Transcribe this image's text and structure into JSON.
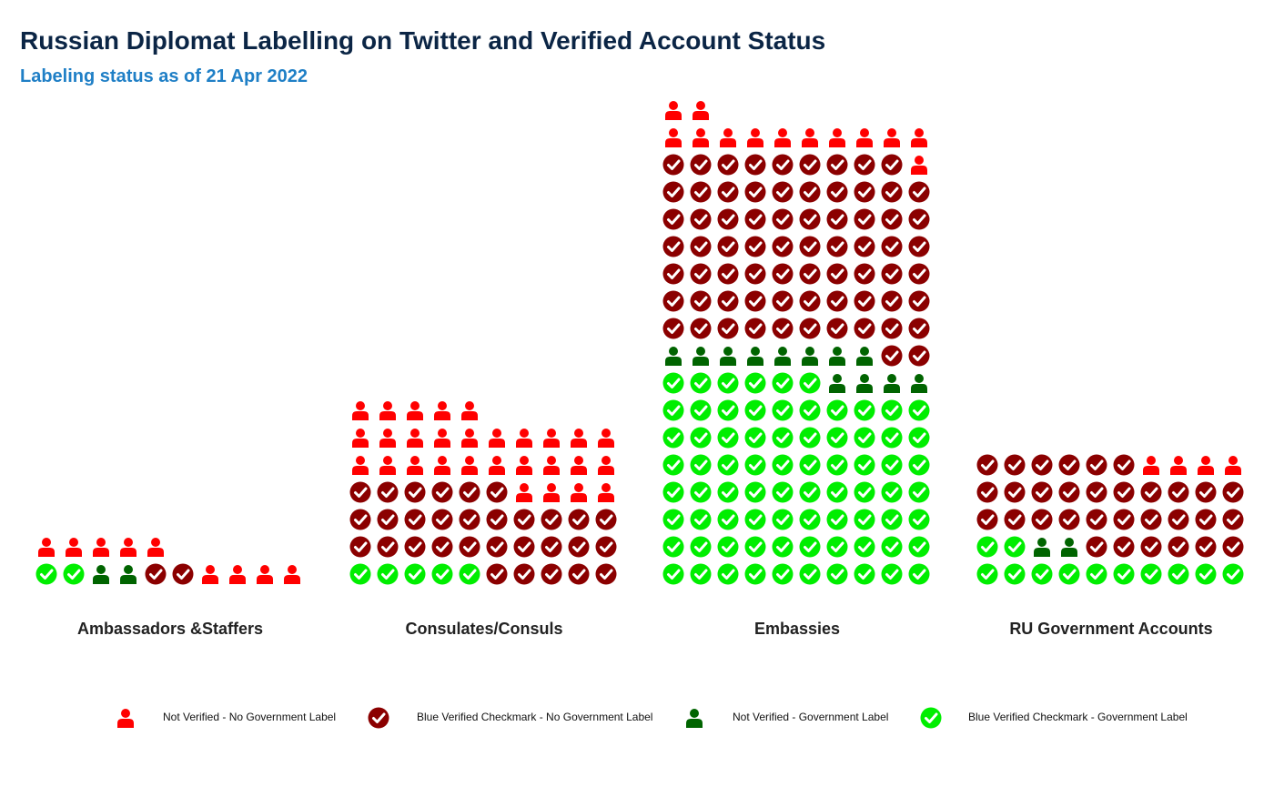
{
  "title": "Russian Diplomat Labelling on Twitter and Verified Account Status",
  "subtitle": "Labeling status as of 21 Apr 2022",
  "colors": {
    "not_verified_no_label": "#ff0000",
    "verified_no_label": "#8b0000",
    "not_verified_label": "#006400",
    "verified_label": "#00ee00"
  },
  "chart_data": {
    "type": "waffle",
    "columns_per_row": 10,
    "category_order": [
      "not_verified_no_label",
      "verified_no_label",
      "not_verified_label",
      "verified_label"
    ],
    "categories": [
      {
        "key": "not_verified_no_label",
        "label": "Not Verified - No Government Label",
        "icon": "person-icon"
      },
      {
        "key": "verified_no_label",
        "label": "Blue Verified Checkmark - No Government Label",
        "icon": "check-circle-icon"
      },
      {
        "key": "not_verified_label",
        "label": "Not Verified - Government Label",
        "icon": "person-icon"
      },
      {
        "key": "verified_label",
        "label": "Blue Verified Checkmark - Government Label",
        "icon": "check-circle-icon"
      }
    ],
    "groups": [
      {
        "name": "Ambassadors &Staffers",
        "counts": {
          "verified_label": 2,
          "not_verified_label": 2,
          "verified_no_label": 2,
          "not_verified_no_label": 9
        }
      },
      {
        "name": "Consulates/Consuls",
        "counts": {
          "verified_label": 5,
          "not_verified_label": 0,
          "verified_no_label": 31,
          "not_verified_no_label": 29
        }
      },
      {
        "name": "Embassies",
        "counts": {
          "verified_label": 76,
          "not_verified_label": 12,
          "verified_no_label": 71,
          "not_verified_no_label": 13
        }
      },
      {
        "name": "RU Government Accounts",
        "counts": {
          "verified_label": 12,
          "not_verified_label": 2,
          "verified_no_label": 32,
          "not_verified_no_label": 4
        }
      }
    ],
    "legend_position": "bottom"
  }
}
